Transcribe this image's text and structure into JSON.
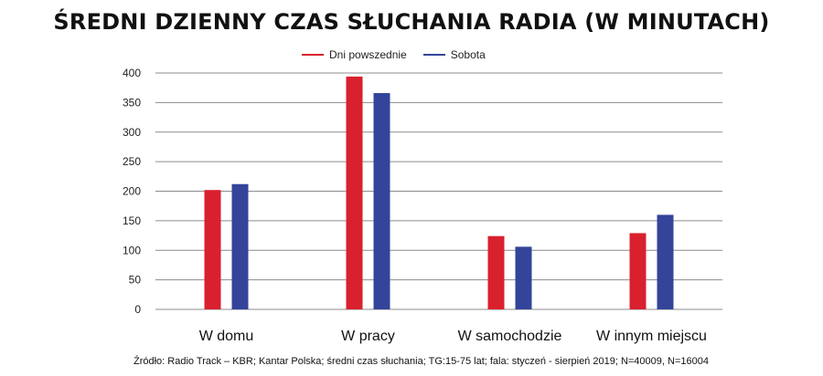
{
  "chart_data": {
    "type": "bar",
    "title": "ŚREDNI DZIENNY CZAS SŁUCHANIA RADIA (W MINUTACH)",
    "xlabel": "",
    "ylabel": "",
    "categories": [
      "W domu",
      "W pracy",
      "W samochodzie",
      "W innym miejscu"
    ],
    "series": [
      {
        "name": "Dni powszednie",
        "color": "#d9202e",
        "values": [
          202,
          394,
          124,
          129
        ]
      },
      {
        "name": "Sobota",
        "color": "#33449a",
        "values": [
          212,
          366,
          106,
          160
        ]
      }
    ],
    "ylim": [
      0,
      400
    ],
    "yticks": [
      0,
      50,
      100,
      150,
      200,
      250,
      300,
      350,
      400
    ],
    "grid": true,
    "legend": "top-center"
  },
  "source": "Źródło: Radio Track – KBR; Kantar Polska; średni czas słuchania; TG:15-75 lat; fala: styczeń - sierpień 2019; N=40009, N=16004"
}
